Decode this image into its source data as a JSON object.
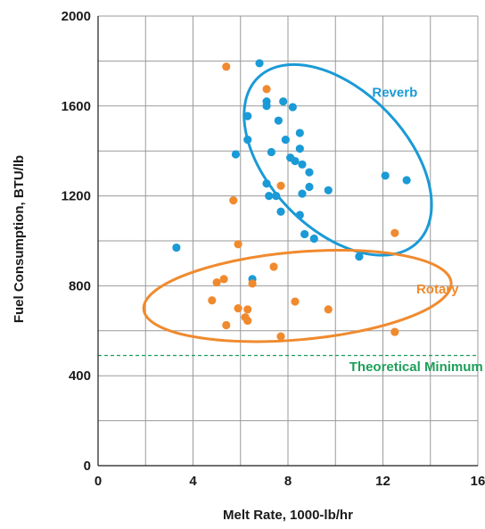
{
  "chart_data": {
    "type": "scatter",
    "xlabel": "Melt Rate, 1000-lb/hr",
    "ylabel": "Fuel Consumption, BTU/lb",
    "xlim": [
      0,
      16
    ],
    "ylim": [
      0,
      2000
    ],
    "x_ticks": [
      0,
      4,
      8,
      12,
      16
    ],
    "y_ticks": [
      0,
      400,
      800,
      1200,
      1600,
      2000
    ],
    "x_gridlines": [
      0,
      2,
      4,
      6,
      8,
      10,
      12,
      14,
      16
    ],
    "y_gridlines": [
      0,
      200,
      400,
      600,
      800,
      1000,
      1200,
      1400,
      1600,
      1800,
      2000
    ],
    "grid": true,
    "series": [
      {
        "name": "Reverb",
        "color": "#1a9ad6",
        "points": [
          {
            "x": 6.8,
            "y": 1790
          },
          {
            "x": 7.1,
            "y": 1620
          },
          {
            "x": 7.1,
            "y": 1600
          },
          {
            "x": 7.8,
            "y": 1620
          },
          {
            "x": 8.2,
            "y": 1595
          },
          {
            "x": 6.3,
            "y": 1555
          },
          {
            "x": 7.6,
            "y": 1535
          },
          {
            "x": 8.5,
            "y": 1480
          },
          {
            "x": 6.3,
            "y": 1450
          },
          {
            "x": 7.9,
            "y": 1450
          },
          {
            "x": 8.5,
            "y": 1410
          },
          {
            "x": 5.8,
            "y": 1385
          },
          {
            "x": 7.3,
            "y": 1395
          },
          {
            "x": 8.1,
            "y": 1370
          },
          {
            "x": 8.3,
            "y": 1355
          },
          {
            "x": 8.6,
            "y": 1340
          },
          {
            "x": 8.9,
            "y": 1305
          },
          {
            "x": 7.1,
            "y": 1255
          },
          {
            "x": 8.9,
            "y": 1240
          },
          {
            "x": 9.7,
            "y": 1225
          },
          {
            "x": 8.6,
            "y": 1210
          },
          {
            "x": 7.2,
            "y": 1200
          },
          {
            "x": 7.5,
            "y": 1200
          },
          {
            "x": 7.7,
            "y": 1130
          },
          {
            "x": 8.5,
            "y": 1115
          },
          {
            "x": 8.7,
            "y": 1030
          },
          {
            "x": 9.1,
            "y": 1010
          },
          {
            "x": 12.1,
            "y": 1290
          },
          {
            "x": 13.0,
            "y": 1270
          },
          {
            "x": 11.0,
            "y": 930
          },
          {
            "x": 3.3,
            "y": 970
          },
          {
            "x": 6.5,
            "y": 830
          }
        ]
      },
      {
        "name": "Rotary",
        "color": "#f08a2e",
        "points": [
          {
            "x": 5.4,
            "y": 1775
          },
          {
            "x": 7.1,
            "y": 1675
          },
          {
            "x": 7.7,
            "y": 1245
          },
          {
            "x": 5.7,
            "y": 1180
          },
          {
            "x": 5.9,
            "y": 985
          },
          {
            "x": 7.4,
            "y": 885
          },
          {
            "x": 5.3,
            "y": 830
          },
          {
            "x": 5.0,
            "y": 815
          },
          {
            "x": 6.5,
            "y": 810
          },
          {
            "x": 4.8,
            "y": 735
          },
          {
            "x": 8.3,
            "y": 730
          },
          {
            "x": 5.9,
            "y": 700
          },
          {
            "x": 6.3,
            "y": 695
          },
          {
            "x": 9.7,
            "y": 695
          },
          {
            "x": 6.2,
            "y": 660
          },
          {
            "x": 6.3,
            "y": 645
          },
          {
            "x": 5.4,
            "y": 625
          },
          {
            "x": 7.7,
            "y": 575
          },
          {
            "x": 12.5,
            "y": 1035
          },
          {
            "x": 12.5,
            "y": 595
          }
        ]
      }
    ],
    "theoretical_minimum": {
      "y": 490,
      "color": "#1e9e5a"
    },
    "annotations": [
      {
        "text": "Reverb",
        "color": "#1a9ad6",
        "x": 12.5,
        "y": 1640
      },
      {
        "text": "Rotary",
        "color": "#f08a2e",
        "x": 14.3,
        "y": 765
      },
      {
        "text": "Theoretical Minimum",
        "color": "#1e9e5a",
        "x": 13.4,
        "y": 420
      }
    ],
    "ellipses": [
      {
        "for": "Reverb",
        "color": "#1a9ad6",
        "cx": 10.1,
        "cy": 1360,
        "rx": 2.9,
        "ry": 510,
        "angle": -44
      },
      {
        "for": "Rotary",
        "color": "#f08a2e",
        "cx": 8.4,
        "cy": 755,
        "rx": 6.5,
        "ry": 195,
        "angle": -5
      }
    ]
  }
}
